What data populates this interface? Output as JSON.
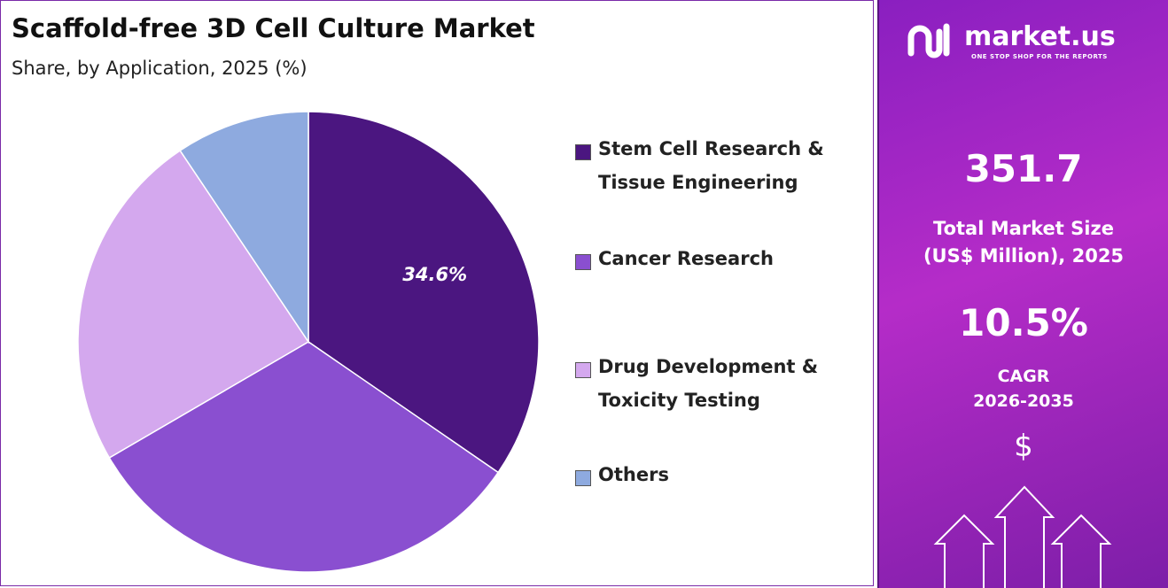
{
  "chart_data": {
    "type": "pie",
    "title": "Scaffold-free 3D Cell Culture Market",
    "subtitle": "Share, by Application, 2025 (%)",
    "categories": [
      "Stem Cell Research & Tissue Engineering",
      "Cancer Research",
      "Drug Development & Toxicity Testing",
      "Others"
    ],
    "values": [
      34.6,
      32.0,
      24.0,
      9.4
    ],
    "value_labels": [
      "34.6%",
      null,
      null,
      null
    ],
    "colors": [
      "#4b1680",
      "#8a4fd0",
      "#d4a8ee",
      "#8eaadf"
    ]
  },
  "panel": {
    "brand": "market.us",
    "tagline": "ONE STOP SHOP FOR THE REPORTS",
    "market_size": "351.7",
    "market_size_label": [
      "Total Market Size",
      "(US$ Million), 2025"
    ],
    "cagr": "10.5%",
    "cagr_label": [
      "CAGR",
      "2026-2035"
    ],
    "currency": "$"
  }
}
